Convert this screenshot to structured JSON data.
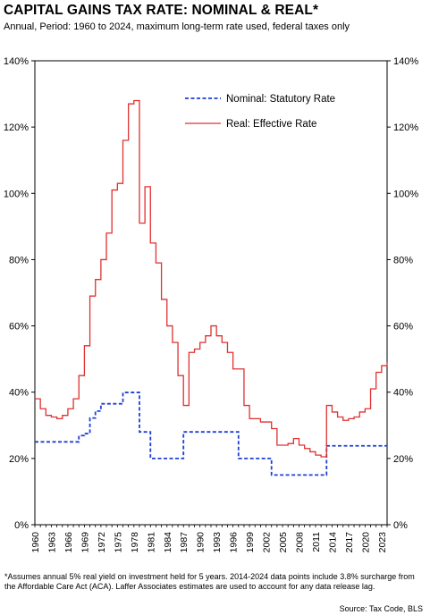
{
  "title": "CAPITAL GAINS TAX RATE:  NOMINAL & REAL*",
  "subtitle": "Annual,  Period: 1960 to 2024, maximum long-term rate used, federal taxes only",
  "footnote": "*Assumes annual 5% real yield on investment held for 5 years. 2014-2024 data points include 3.8% surcharge from the Affordable Care Act (ACA).  Laffer Associates estimates are used to account for any data release lag.",
  "source": "Source: Tax Code, BLS",
  "chart_data": {
    "type": "line",
    "title": "CAPITAL GAINS TAX RATE:  NOMINAL & REAL*",
    "xlabel": "",
    "ylabel": "",
    "xlim": [
      1960,
      2024
    ],
    "ylim": [
      0,
      140
    ],
    "yticks": [
      0,
      20,
      40,
      60,
      80,
      100,
      120,
      140
    ],
    "ytick_labels": [
      "0%",
      "20%",
      "40%",
      "60%",
      "80%",
      "100%",
      "120%",
      "140%"
    ],
    "xticks": [
      1960,
      1963,
      1966,
      1969,
      1972,
      1975,
      1978,
      1981,
      1984,
      1987,
      1990,
      1993,
      1996,
      1999,
      2002,
      2005,
      2008,
      2011,
      2014,
      2017,
      2020,
      2023
    ],
    "dual_y_axis": true,
    "grid": false,
    "legend_position": "top-right",
    "series": [
      {
        "name": "Nominal: Statutory Rate",
        "color": "#1f3fd6",
        "style": "dashed",
        "step": true,
        "x": [
          1960,
          1961,
          1962,
          1963,
          1964,
          1965,
          1966,
          1967,
          1968,
          1969,
          1970,
          1971,
          1972,
          1973,
          1974,
          1975,
          1976,
          1977,
          1978,
          1979,
          1980,
          1981,
          1982,
          1983,
          1984,
          1985,
          1986,
          1987,
          1988,
          1989,
          1990,
          1991,
          1992,
          1993,
          1994,
          1995,
          1996,
          1997,
          1998,
          1999,
          2000,
          2001,
          2002,
          2003,
          2004,
          2005,
          2006,
          2007,
          2008,
          2009,
          2010,
          2011,
          2012,
          2013,
          2014,
          2015,
          2016,
          2017,
          2018,
          2019,
          2020,
          2021,
          2022,
          2023,
          2024
        ],
        "values": [
          25,
          25,
          25,
          25,
          25,
          25,
          25,
          25,
          26.9,
          27.5,
          32.2,
          34.3,
          36.5,
          36.5,
          36.5,
          36.5,
          39.9,
          39.9,
          39.9,
          28,
          28,
          20,
          20,
          20,
          20,
          20,
          20,
          28,
          28,
          28,
          28,
          28,
          28,
          28,
          28,
          28,
          28,
          20,
          20,
          20,
          20,
          20,
          20,
          15,
          15,
          15,
          15,
          15,
          15,
          15,
          15,
          15,
          15,
          23.8,
          23.8,
          23.8,
          23.8,
          23.8,
          23.8,
          23.8,
          23.8,
          23.8,
          23.8,
          23.8,
          23.8
        ]
      },
      {
        "name": "Real: Effective Rate",
        "color": "#e03030",
        "style": "solid",
        "step": true,
        "x": [
          1960,
          1961,
          1962,
          1963,
          1964,
          1965,
          1966,
          1967,
          1968,
          1969,
          1970,
          1971,
          1972,
          1973,
          1974,
          1975,
          1976,
          1977,
          1978,
          1979,
          1980,
          1981,
          1982,
          1983,
          1984,
          1985,
          1986,
          1987,
          1988,
          1989,
          1990,
          1991,
          1992,
          1993,
          1994,
          1995,
          1996,
          1997,
          1998,
          1999,
          2000,
          2001,
          2002,
          2003,
          2004,
          2005,
          2006,
          2007,
          2008,
          2009,
          2010,
          2011,
          2012,
          2013,
          2014,
          2015,
          2016,
          2017,
          2018,
          2019,
          2020,
          2021,
          2022,
          2023,
          2024
        ],
        "values": [
          38,
          35,
          33,
          32.5,
          32,
          33,
          35,
          38,
          45,
          54,
          69,
          74,
          80,
          88,
          101,
          103,
          116,
          127,
          128,
          91,
          102,
          85,
          79,
          68,
          60,
          55,
          45,
          36,
          52,
          53,
          55,
          57,
          60,
          57,
          55,
          52,
          47,
          47,
          36,
          32,
          32,
          31,
          31,
          29,
          24,
          24,
          24.5,
          26,
          24,
          23,
          22,
          21,
          20.5,
          36,
          34,
          32.5,
          31.5,
          32,
          32.5,
          34,
          35,
          41,
          46,
          48,
          49
        ]
      }
    ]
  }
}
